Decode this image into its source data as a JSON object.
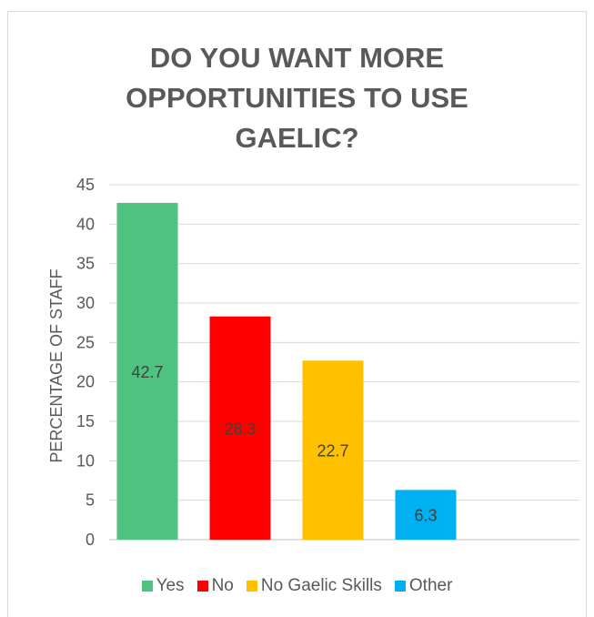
{
  "chart_data": {
    "type": "bar",
    "title_lines": [
      "DO YOU WANT MORE",
      "OPPORTUNITIES TO USE",
      "GAELIC?"
    ],
    "ylabel": "PERCENTAGE OF STAFF",
    "xlabel": "",
    "categories": [
      "Yes",
      "No",
      "No Gaelic Skills",
      "Other"
    ],
    "values": [
      42.7,
      28.3,
      22.7,
      6.3
    ],
    "colors": [
      "#4ec27f",
      "#ff0000",
      "#ffc000",
      "#00b0f0"
    ],
    "ylim": [
      0,
      45
    ],
    "yticks": [
      0,
      5,
      10,
      15,
      20,
      25,
      30,
      35,
      40,
      45
    ],
    "grid": true,
    "legend_position": "bottom",
    "data_labels": [
      "42.7",
      "28.3",
      "22.7",
      "6.3"
    ]
  }
}
